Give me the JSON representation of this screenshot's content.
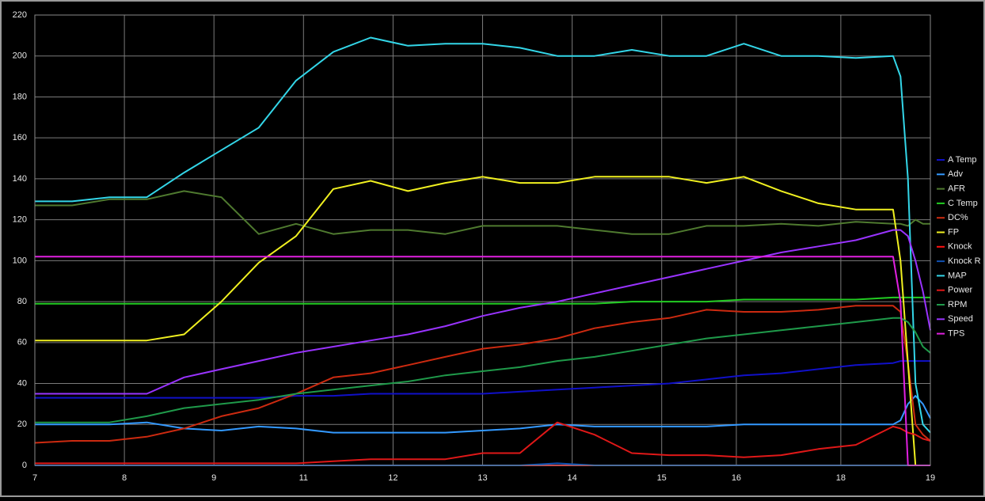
{
  "chart_data": {
    "type": "line",
    "x": [
      7,
      7.5,
      8,
      8.5,
      9,
      9.5,
      10,
      10.5,
      11,
      11.5,
      12,
      12.5,
      13,
      13.5,
      14,
      14.5,
      15,
      15.5,
      16,
      16.5,
      17,
      17.5,
      18,
      18.5,
      18.6,
      18.7,
      18.8,
      18.9,
      19
    ],
    "xlim": [
      7,
      19
    ],
    "xticks": [
      7,
      {
        "value": 8.2,
        "label": "8"
      },
      {
        "value": 9.4,
        "label": "9"
      },
      {
        "value": 10.6,
        "label": "11"
      },
      {
        "value": 11.8,
        "label": "12"
      },
      13,
      {
        "value": 14.2,
        "label": "14"
      },
      {
        "value": 15.4,
        "label": "15"
      },
      {
        "value": 16.4,
        "label": "16"
      },
      {
        "value": 17.8,
        "label": "18"
      },
      19
    ],
    "ylim": [
      0,
      220
    ],
    "yticks": [
      0,
      20,
      40,
      60,
      80,
      100,
      120,
      140,
      160,
      180,
      200,
      220
    ],
    "grid": true,
    "legend": "right",
    "series": [
      {
        "name": "A Temp",
        "color": "#1010c8",
        "values": [
          33,
          33,
          33,
          33,
          33,
          33,
          33,
          34,
          34,
          35,
          35,
          35,
          35,
          36,
          37,
          38,
          39,
          40,
          42,
          44,
          45,
          47,
          49,
          50,
          51,
          51,
          51,
          51,
          51
        ]
      },
      {
        "name": "Adv",
        "color": "#3399ff",
        "values": [
          20,
          20,
          20,
          21,
          18,
          17,
          19,
          18,
          16,
          16,
          16,
          16,
          17,
          18,
          20,
          19,
          19,
          19,
          19,
          20,
          20,
          20,
          20,
          20,
          22,
          30,
          34,
          30,
          23
        ]
      },
      {
        "name": "AFR",
        "color": "#4f7a2f",
        "values": [
          127,
          127,
          130,
          130,
          134,
          131,
          113,
          118,
          113,
          115,
          115,
          113,
          117,
          117,
          117,
          115,
          113,
          113,
          117,
          117,
          118,
          117,
          119,
          118,
          118,
          117,
          120,
          118,
          118
        ]
      },
      {
        "name": "C Temp",
        "color": "#22cc22",
        "values": [
          79,
          79,
          79,
          79,
          79,
          79,
          79,
          79,
          79,
          79,
          79,
          79,
          79,
          79,
          79,
          79,
          80,
          80,
          80,
          81,
          81,
          81,
          81,
          82,
          82,
          82,
          82,
          82,
          82
        ]
      },
      {
        "name": "DC%",
        "color": "#cc2a10",
        "values": [
          11,
          12,
          12,
          14,
          18,
          24,
          28,
          35,
          43,
          45,
          49,
          53,
          57,
          59,
          62,
          67,
          70,
          72,
          76,
          75,
          75,
          76,
          78,
          78,
          75,
          50,
          20,
          15,
          12
        ]
      },
      {
        "name": "FP",
        "color": "#f0f020",
        "values": [
          61,
          61,
          61,
          61,
          64,
          80,
          99,
          112,
          135,
          139,
          134,
          138,
          141,
          138,
          138,
          141,
          141,
          141,
          138,
          141,
          134,
          128,
          125,
          125,
          100,
          50,
          0,
          0,
          0
        ]
      },
      {
        "name": "Knock",
        "color": "#ff1010",
        "values": [
          0,
          0,
          0,
          0,
          0,
          0,
          0,
          0,
          0,
          0,
          0,
          0,
          0,
          0,
          0,
          0,
          0,
          0,
          0,
          0,
          0,
          0,
          0,
          0,
          0,
          0,
          0,
          0,
          0
        ]
      },
      {
        "name": "Knock R",
        "color": "#1050b0",
        "values": [
          0,
          0,
          0,
          0,
          0,
          0,
          0,
          0,
          0,
          0,
          0,
          0,
          0,
          0,
          1,
          0,
          0,
          0,
          0,
          0,
          0,
          0,
          0,
          0,
          0,
          0,
          0,
          0,
          0
        ]
      },
      {
        "name": "MAP",
        "color": "#33d6e8",
        "values": [
          129,
          129,
          131,
          131,
          143,
          154,
          165,
          188,
          202,
          209,
          205,
          206,
          206,
          204,
          200,
          200,
          203,
          200,
          200,
          206,
          200,
          200,
          199,
          200,
          190,
          140,
          40,
          20,
          16
        ]
      },
      {
        "name": "Power",
        "color": "#e01818",
        "values": [
          1,
          1,
          1,
          1,
          1,
          1,
          1,
          1,
          2,
          3,
          3,
          3,
          6,
          6,
          21,
          15,
          6,
          5,
          5,
          4,
          5,
          8,
          10,
          19,
          18,
          16,
          15,
          13,
          12
        ]
      },
      {
        "name": "RPM",
        "color": "#1f9a4a",
        "values": [
          21,
          21,
          21,
          24,
          28,
          30,
          32,
          35,
          37,
          39,
          41,
          44,
          46,
          48,
          51,
          53,
          56,
          59,
          62,
          64,
          66,
          68,
          70,
          72,
          72,
          70,
          65,
          58,
          55
        ]
      },
      {
        "name": "Speed",
        "color": "#9933ff",
        "values": [
          35,
          35,
          35,
          35,
          43,
          47,
          51,
          55,
          58,
          61,
          64,
          68,
          73,
          77,
          80,
          84,
          88,
          92,
          96,
          100,
          104,
          107,
          110,
          115,
          115,
          112,
          100,
          85,
          66
        ]
      },
      {
        "name": "TPS",
        "color": "#e020e0",
        "values": [
          102,
          102,
          102,
          102,
          102,
          102,
          102,
          102,
          102,
          102,
          102,
          102,
          102,
          102,
          102,
          102,
          102,
          102,
          102,
          102,
          102,
          102,
          102,
          102,
          80,
          0,
          0,
          0,
          0
        ]
      }
    ]
  }
}
